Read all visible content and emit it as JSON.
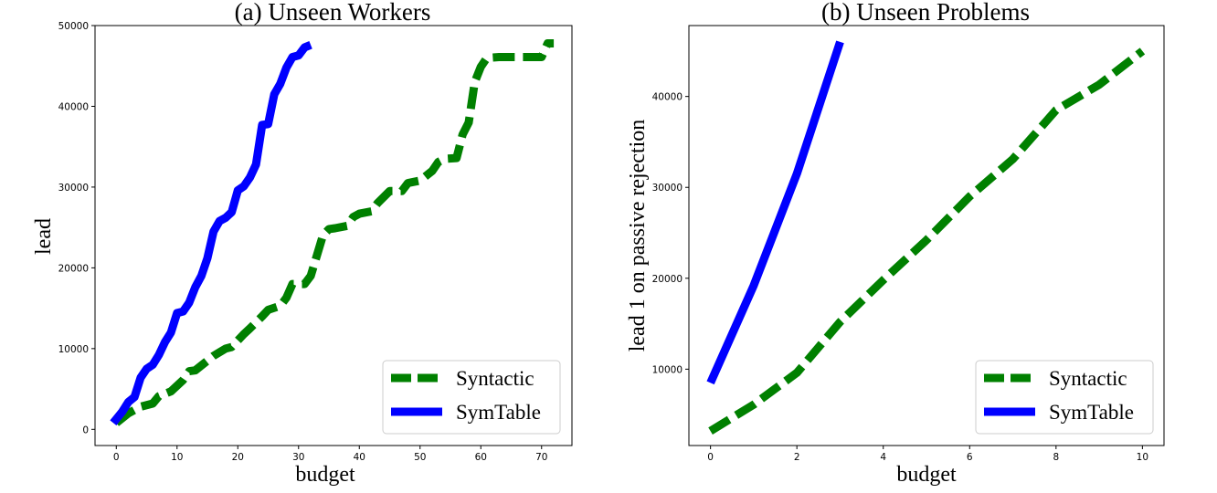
{
  "chart_data": [
    {
      "type": "line",
      "title": "(a) Unseen Workers",
      "xlabel": "budget",
      "ylabel": "lead",
      "xlim": [
        -3.5,
        75
      ],
      "ylim": [
        -2000,
        50000
      ],
      "xticks": [
        0,
        10,
        20,
        30,
        40,
        50,
        60,
        70
      ],
      "yticks": [
        0,
        10000,
        20000,
        30000,
        40000,
        50000
      ],
      "legend_position": "lower-right",
      "series": [
        {
          "name": "Syntactic",
          "color": "#008000",
          "style": "dashed",
          "x": [
            0,
            2,
            4,
            6,
            7,
            9,
            11,
            12,
            13,
            15,
            16,
            18,
            19,
            21,
            22,
            24,
            25,
            27,
            28,
            29,
            31,
            32,
            34,
            35,
            36,
            38,
            39,
            40,
            42,
            43,
            45,
            46,
            47,
            48,
            50,
            52,
            53,
            54,
            56,
            57,
            58,
            59,
            60,
            61,
            63,
            65,
            67,
            68,
            70,
            71,
            72
          ],
          "values": [
            800,
            2000,
            2800,
            3200,
            4100,
            4700,
            6100,
            7200,
            7300,
            8500,
            9100,
            10000,
            10200,
            11800,
            12500,
            14000,
            14800,
            15300,
            16300,
            18000,
            18000,
            19000,
            24000,
            24800,
            24900,
            25200,
            26300,
            26700,
            27000,
            28000,
            29500,
            29500,
            29500,
            30500,
            30800,
            32000,
            33100,
            33500,
            33600,
            36500,
            38000,
            43000,
            44900,
            46000,
            46100,
            46100,
            46100,
            46100,
            46100,
            47800,
            47800
          ]
        },
        {
          "name": "SymTable",
          "color": "#0000ff",
          "style": "solid",
          "x": [
            -0.5,
            1,
            2,
            3,
            4,
            5,
            6,
            7,
            8,
            9,
            10,
            11,
            12,
            13,
            14,
            15,
            16,
            17,
            18,
            19,
            20,
            21,
            22,
            23,
            24,
            25,
            26,
            27,
            28,
            29,
            30,
            31,
            32
          ],
          "values": [
            800,
            2200,
            3400,
            4000,
            6400,
            7500,
            8000,
            9200,
            10800,
            12000,
            14400,
            14600,
            15700,
            17600,
            19000,
            21200,
            24500,
            25800,
            26200,
            26900,
            29600,
            30100,
            31200,
            32800,
            37700,
            37800,
            41500,
            42800,
            44800,
            46100,
            46300,
            47300,
            47600
          ]
        }
      ]
    },
    {
      "type": "line",
      "title": "(b) Unseen Problems",
      "xlabel": "budget",
      "ylabel": "lead 1 on passive rejection",
      "xlim": [
        -0.5,
        10.5
      ],
      "ylim": [
        1600,
        47800
      ],
      "xticks": [
        0,
        2,
        4,
        6,
        8,
        10
      ],
      "yticks": [
        10000,
        20000,
        30000,
        40000
      ],
      "legend_position": "lower-right",
      "series": [
        {
          "name": "Syntactic",
          "color": "#008000",
          "style": "dashed",
          "x": [
            0,
            1,
            2,
            3,
            4,
            5,
            6,
            7,
            8,
            9,
            10
          ],
          "values": [
            3200,
            6100,
            9600,
            15200,
            19800,
            24200,
            29000,
            33100,
            38500,
            41300,
            45000
          ]
        },
        {
          "name": "SymTable",
          "color": "#0000ff",
          "style": "solid",
          "x": [
            0,
            1,
            2,
            3
          ],
          "values": [
            8500,
            19200,
            31500,
            46000
          ]
        }
      ]
    }
  ]
}
